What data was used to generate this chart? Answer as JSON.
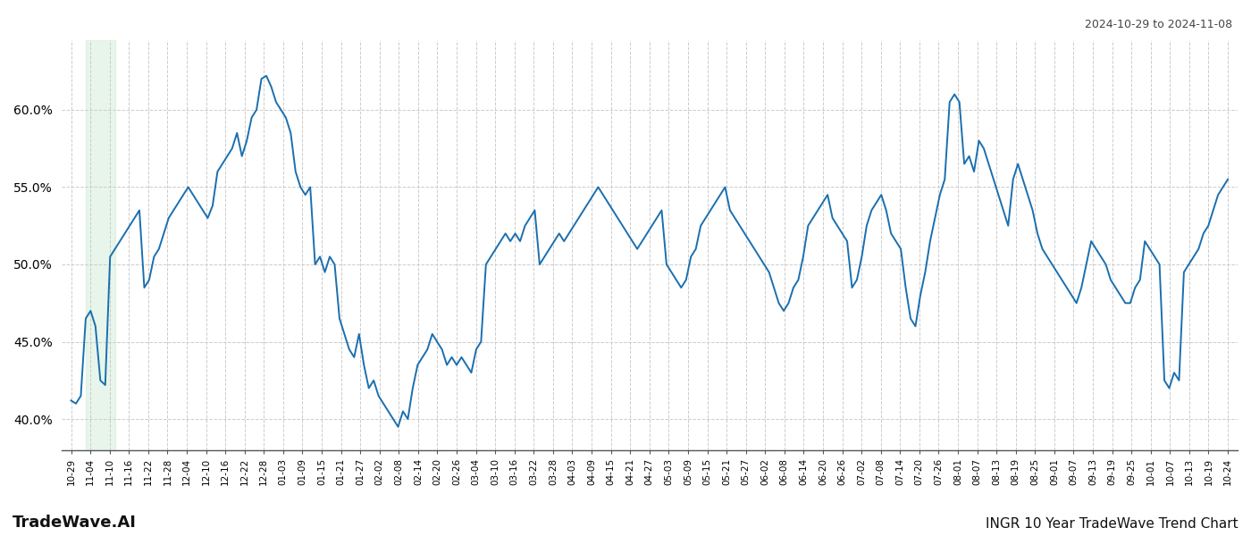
{
  "title_top_right": "2024-10-29 to 2024-11-08",
  "title_bottom_left": "TradeWave.AI",
  "title_bottom_right": "INGR 10 Year TradeWave Trend Chart",
  "line_color": "#1a6faf",
  "line_width": 1.4,
  "background_color": "#ffffff",
  "grid_color": "#cccccc",
  "shade_color": "#d4edda",
  "ylim": [
    38.0,
    64.5
  ],
  "yticks": [
    40.0,
    45.0,
    50.0,
    55.0,
    60.0
  ],
  "x_labels": [
    "10-29",
    "11-04",
    "11-10",
    "11-16",
    "11-22",
    "11-28",
    "12-04",
    "12-10",
    "12-16",
    "12-22",
    "12-28",
    "01-03",
    "01-09",
    "01-15",
    "01-21",
    "01-27",
    "02-02",
    "02-08",
    "02-14",
    "02-20",
    "02-26",
    "03-04",
    "03-10",
    "03-16",
    "03-22",
    "03-28",
    "04-03",
    "04-09",
    "04-15",
    "04-21",
    "04-27",
    "05-03",
    "05-09",
    "05-15",
    "05-21",
    "05-27",
    "06-02",
    "06-08",
    "06-14",
    "06-20",
    "06-26",
    "07-02",
    "07-08",
    "07-14",
    "07-20",
    "07-26",
    "08-01",
    "08-07",
    "08-13",
    "08-19",
    "08-25",
    "09-01",
    "09-07",
    "09-13",
    "09-19",
    "09-25",
    "10-01",
    "10-07",
    "10-13",
    "10-19",
    "10-24"
  ],
  "values": [
    41.2,
    41.0,
    41.5,
    46.5,
    47.0,
    46.0,
    42.5,
    42.2,
    50.5,
    51.0,
    51.5,
    52.0,
    52.5,
    53.0,
    53.5,
    48.5,
    49.0,
    50.5,
    51.0,
    52.0,
    53.0,
    53.5,
    54.0,
    54.5,
    55.0,
    54.5,
    54.0,
    53.5,
    53.0,
    53.8,
    56.0,
    56.5,
    57.0,
    57.5,
    58.5,
    57.0,
    58.0,
    59.5,
    60.0,
    62.0,
    62.2,
    61.5,
    60.5,
    60.0,
    59.5,
    58.5,
    56.0,
    55.0,
    54.5,
    55.0,
    50.0,
    50.5,
    49.5,
    50.5,
    50.0,
    46.5,
    45.5,
    44.5,
    44.0,
    45.5,
    43.5,
    42.0,
    42.5,
    41.5,
    41.0,
    40.5,
    40.0,
    39.5,
    40.5,
    40.0,
    42.0,
    43.5,
    44.0,
    44.5,
    45.5,
    45.0,
    44.5,
    43.5,
    44.0,
    43.5,
    44.0,
    43.5,
    43.0,
    44.5,
    45.0,
    50.0,
    50.5,
    51.0,
    51.5,
    52.0,
    51.5,
    52.0,
    51.5,
    52.5,
    53.0,
    53.5,
    50.0,
    50.5,
    51.0,
    51.5,
    52.0,
    51.5,
    52.0,
    52.5,
    53.0,
    53.5,
    54.0,
    54.5,
    55.0,
    54.5,
    54.0,
    53.5,
    53.0,
    52.5,
    52.0,
    51.5,
    51.0,
    51.5,
    52.0,
    52.5,
    53.0,
    53.5,
    50.0,
    49.5,
    49.0,
    48.5,
    49.0,
    50.5,
    51.0,
    52.5,
    53.0,
    53.5,
    54.0,
    54.5,
    55.0,
    53.5,
    53.0,
    52.5,
    52.0,
    51.5,
    51.0,
    50.5,
    50.0,
    49.5,
    48.5,
    47.5,
    47.0,
    47.5,
    48.5,
    49.0,
    50.5,
    52.5,
    53.0,
    53.5,
    54.0,
    54.5,
    53.0,
    52.5,
    52.0,
    51.5,
    48.5,
    49.0,
    50.5,
    52.5,
    53.5,
    54.0,
    54.5,
    53.5,
    52.0,
    51.5,
    51.0,
    48.5,
    46.5,
    46.0,
    48.0,
    49.5,
    51.5,
    53.0,
    54.5,
    55.5,
    60.5,
    61.0,
    60.5,
    56.5,
    57.0,
    56.0,
    58.0,
    57.5,
    56.5,
    55.5,
    54.5,
    53.5,
    52.5,
    55.5,
    56.5,
    55.5,
    54.5,
    53.5,
    52.0,
    51.0,
    50.5,
    50.0,
    49.5,
    49.0,
    48.5,
    48.0,
    47.5,
    48.5,
    50.0,
    51.5,
    51.0,
    50.5,
    50.0,
    49.0,
    48.5,
    48.0,
    47.5,
    47.5,
    48.5,
    49.0,
    51.5,
    51.0,
    50.5,
    50.0,
    42.5,
    42.0,
    43.0,
    42.5,
    49.5,
    50.0,
    50.5,
    51.0,
    52.0,
    52.5,
    53.5,
    54.5,
    55.0,
    55.5
  ]
}
